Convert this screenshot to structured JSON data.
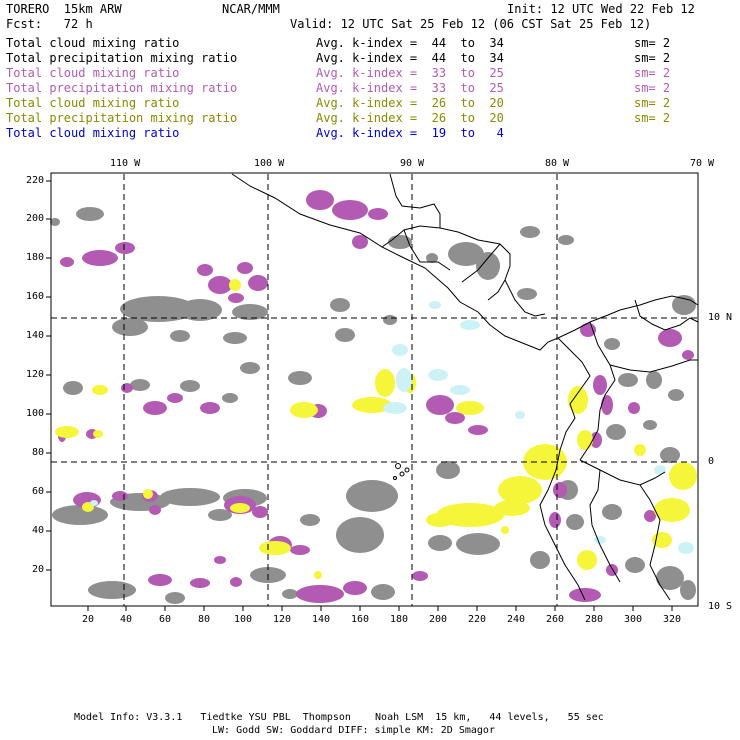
{
  "header": {
    "model": "TORERO  15km ARW",
    "center": "NCAR/MMM",
    "init": "Init: 12 UTC Wed 22 Feb 12",
    "fcst": "Fcst:   72 h",
    "valid": "Valid: 12 UTC Sat 25 Feb 12 (06 CST Sat 25 Feb 12)"
  },
  "legend": [
    {
      "name": "Total cloud mixing ratio",
      "kindex": "Avg. k-index =  44  to  34",
      "sm": "sm= 2",
      "color": "#000000"
    },
    {
      "name": "Total precipitation mixing ratio",
      "kindex": "Avg. k-index =  44  to  34",
      "sm": "sm= 2",
      "color": "#000000"
    },
    {
      "name": "Total cloud mixing ratio",
      "kindex": "Avg. k-index =  33  to  25",
      "sm": "sm= 2",
      "color": "#b35bb3"
    },
    {
      "name": "Total precipitation mixing ratio",
      "kindex": "Avg. k-index =  33  to  25",
      "sm": "sm= 2",
      "color": "#b35bb3"
    },
    {
      "name": "Total cloud mixing ratio",
      "kindex": "Avg. k-index =  26  to  20",
      "sm": "sm= 2",
      "color": "#8a8a00"
    },
    {
      "name": "Total precipitation mixing ratio",
      "kindex": "Avg. k-index =  26  to  20",
      "sm": "sm= 2",
      "color": "#8a8a00"
    },
    {
      "name": "Total cloud mixing ratio",
      "kindex": "Avg. k-index =  19  to   4",
      "sm": "",
      "color": "#0000cc"
    }
  ],
  "axes": {
    "top_lon": [
      "110 W",
      "100 W",
      "90 W",
      "80 W",
      "70 W"
    ],
    "right_lat": [
      "10 N",
      "0",
      "10 S"
    ],
    "left": [
      "220",
      "200",
      "180",
      "160",
      "140",
      "120",
      "100",
      "80",
      "60",
      "40",
      "20"
    ],
    "bottom": [
      "20",
      "40",
      "60",
      "80",
      "100",
      "120",
      "140",
      "160",
      "180",
      "200",
      "220",
      "240",
      "260",
      "280",
      "300",
      "320"
    ]
  },
  "footer": {
    "line1": "Model Info: V3.3.1   Tiedtke YSU PBL  Thompson    Noah LSM  15 km,   44 levels,   55 sec",
    "line2": "LW: Godd SW: Goddard DIFF: simple KM: 2D Smagor"
  },
  "colors": {
    "gray": "#8f8f8f",
    "purple": "#b35bb3",
    "yellow": "#f5f53a",
    "lightblue": "#cdf2f5"
  }
}
